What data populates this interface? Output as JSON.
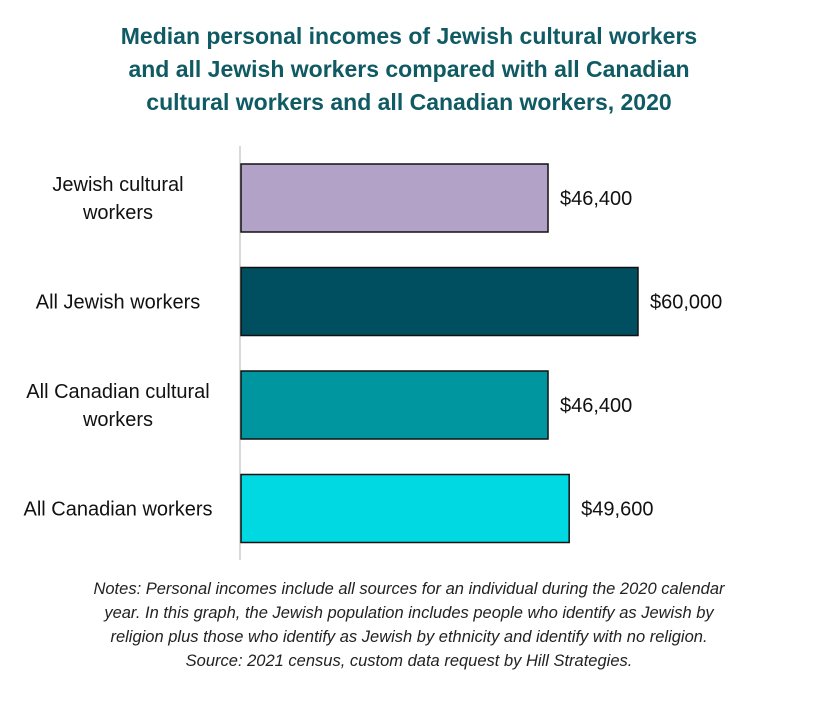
{
  "title_lines": [
    "Median personal incomes of Jewish cultural workers",
    "and all Jewish workers compared with all Canadian",
    "cultural workers and all Canadian workers, 2020"
  ],
  "notes_lines": [
    "Notes: Personal incomes include all sources for an individual during the 2020 calendar",
    "year. In this graph, the Jewish population includes people who identify as Jewish by",
    "religion plus those who identify as Jewish by ethnicity and identify with no religion.",
    "Source: 2021 census, custom data request by Hill Strategies."
  ],
  "chart_data": {
    "type": "bar",
    "orientation": "horizontal",
    "title": "Median personal incomes of Jewish cultural workers and all Jewish workers compared with all Canadian cultural workers and all Canadian workers, 2020",
    "categories": [
      [
        "Jewish cultural",
        "workers"
      ],
      [
        "All Jewish workers"
      ],
      [
        "All Canadian cultural",
        "workers"
      ],
      [
        "All Canadian workers"
      ]
    ],
    "values": [
      46400,
      60000,
      46400,
      49600
    ],
    "value_labels": [
      "$46,400",
      "$60,000",
      "$46,400",
      "$49,600"
    ],
    "colors": [
      "#b2a2c8",
      "#004f60",
      "#00969f",
      "#00d9e2"
    ],
    "xlim": [
      0,
      60000
    ],
    "grid": false,
    "legend": "none"
  }
}
